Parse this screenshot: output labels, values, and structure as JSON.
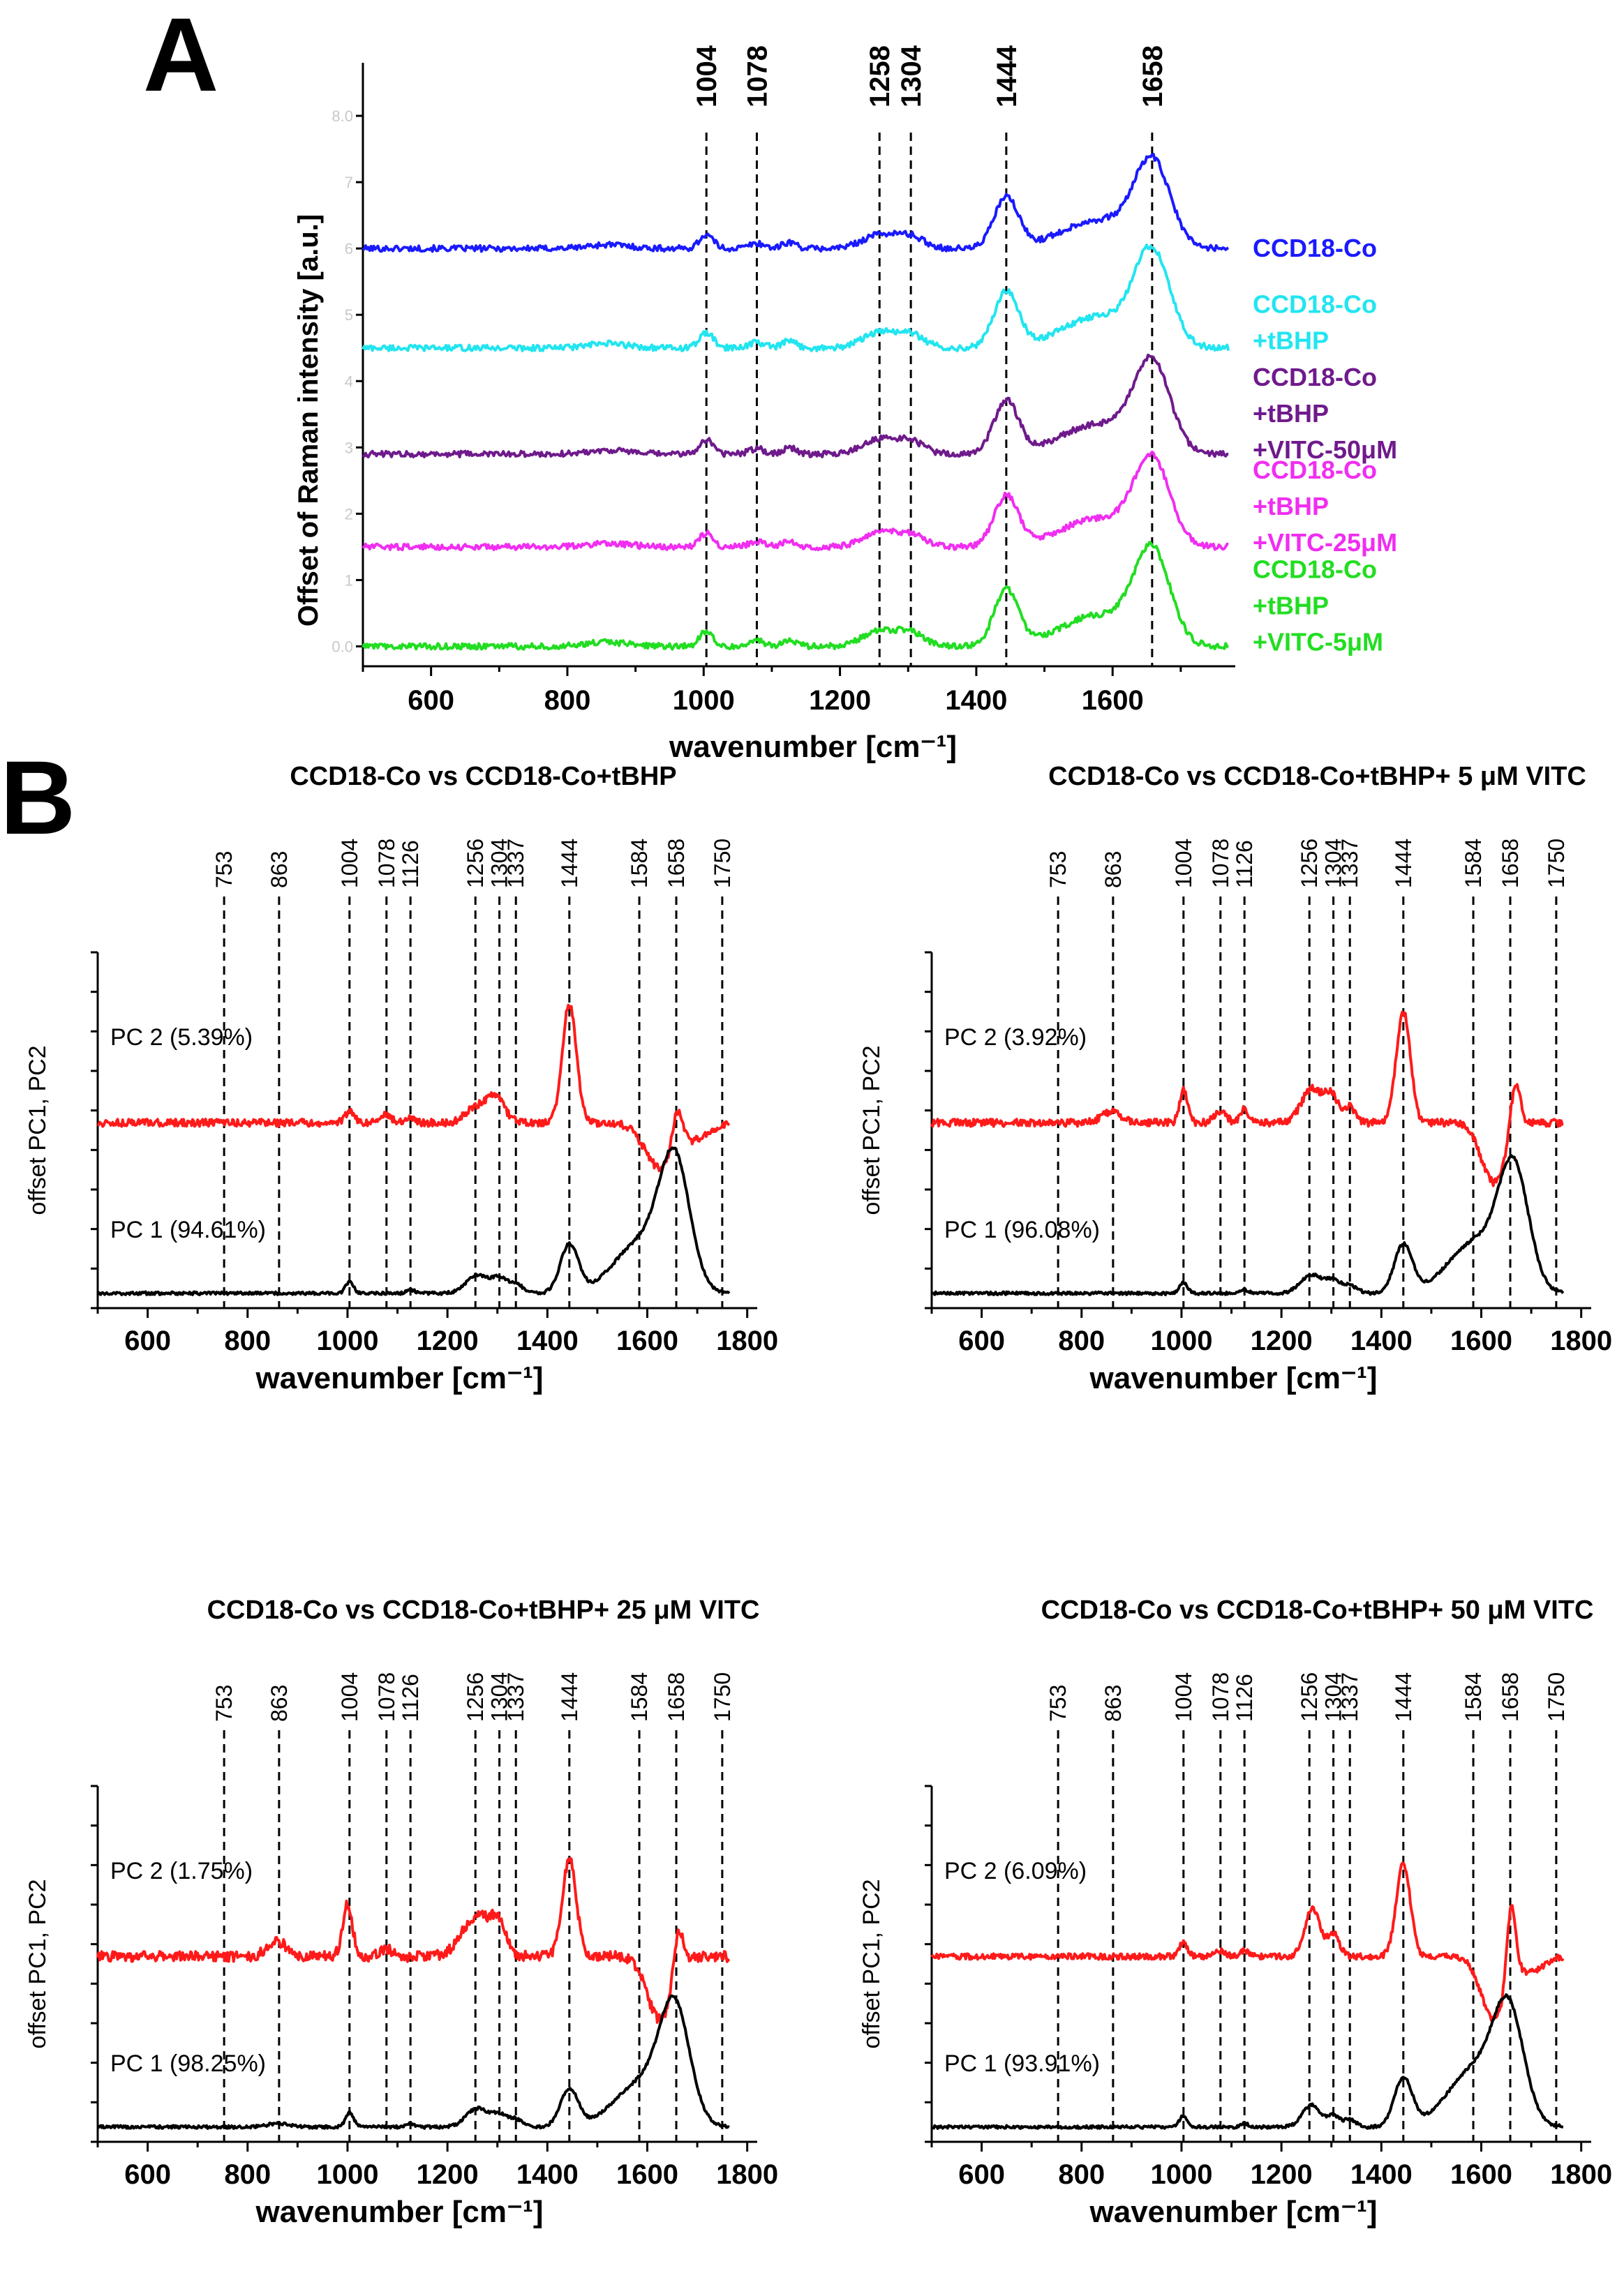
{
  "figure": {
    "panel_a_letter": "A",
    "panel_b_letter": "B"
  },
  "colors": {
    "blue": "#1a1aff",
    "cyan": "#22e5f0",
    "purple": "#6f1a8c",
    "magenta": "#f02ef0",
    "green": "#22dd22",
    "red": "#ff1a1a",
    "black": "#000000"
  },
  "chart_data": [
    {
      "id": "panel-a",
      "type": "line",
      "title": "",
      "xlabel": "wavenumber [cm⁻¹]",
      "ylabel": "Offset of Raman intensity [a.u.]",
      "xlim": [
        500,
        1780
      ],
      "ylim": [
        -0.3,
        8.8
      ],
      "xticks": [
        600,
        800,
        1000,
        1200,
        1400,
        1600
      ],
      "yticks_ghost": [
        "0.0",
        "1",
        "2",
        "3",
        "4",
        "5",
        "6",
        "7",
        "8.0"
      ],
      "peak_lines": [
        1004,
        1078,
        1258,
        1304,
        1444,
        1658
      ],
      "peaks": [
        {
          "pos": 860,
          "w": 30,
          "a": 0.06
        },
        {
          "pos": 1004,
          "w": 10,
          "a": 0.22
        },
        {
          "pos": 1078,
          "w": 12,
          "a": 0.08
        },
        {
          "pos": 1126,
          "w": 10,
          "a": 0.1
        },
        {
          "pos": 1258,
          "w": 25,
          "a": 0.22
        },
        {
          "pos": 1304,
          "w": 20,
          "a": 0.18
        },
        {
          "pos": 1444,
          "w": 18,
          "a": 0.8
        },
        {
          "pos": 1580,
          "w": 55,
          "a": 0.45
        },
        {
          "pos": 1658,
          "w": 26,
          "a": 1.3
        }
      ],
      "series": [
        {
          "name": "CCD18-Co",
          "color": "#1a1aff",
          "offset": 6.0,
          "scale": 0.95,
          "legend": [
            "CCD18-Co"
          ]
        },
        {
          "name": "CCD18-Co +tBHP",
          "color": "#22e5f0",
          "offset": 4.5,
          "scale": 1.05,
          "legend": [
            "CCD18-Co",
            "+tBHP"
          ]
        },
        {
          "name": "CCD18-Co +tBHP +VITC-50μM",
          "color": "#6f1a8c",
          "offset": 2.9,
          "scale": 1.0,
          "legend": [
            "CCD18-Co",
            "+tBHP",
            "+VITC-50μM"
          ]
        },
        {
          "name": "CCD18-Co +tBHP +VITC-25μM",
          "color": "#f02ef0",
          "offset": 1.5,
          "scale": 0.95,
          "legend": [
            "CCD18-Co",
            "+tBHP",
            "+VITC-25μM"
          ]
        },
        {
          "name": "CCD18-Co +tBHP +VITC-5μM",
          "color": "#22dd22",
          "offset": 0.0,
          "scale": 1.05,
          "legend": [
            "CCD18-Co",
            "+tBHP",
            "+VITC-5μM"
          ]
        }
      ]
    },
    {
      "id": "panel-b1",
      "type": "line",
      "title": "CCD18-Co vs CCD18-Co+tBHP",
      "xlabel": "wavenumber [cm⁻¹]",
      "ylabel": "offset PC1, PC2",
      "xlim": [
        500,
        1820
      ],
      "ylim": [
        -0.2,
        4.6
      ],
      "xticks": [
        600,
        800,
        1000,
        1200,
        1400,
        1600,
        1800
      ],
      "peak_lines": [
        753,
        863,
        1004,
        1078,
        1126,
        1256,
        1304,
        1337,
        1444,
        1584,
        1658,
        1750
      ],
      "series": [
        {
          "name": "PC 2 (5.39%)",
          "color": "#ff1a1a",
          "offset": 2.3,
          "noise": 0.05,
          "peaks": [
            {
              "pos": 1004,
              "w": 9,
              "a": 0.15
            },
            {
              "pos": 1078,
              "w": 10,
              "a": 0.12
            },
            {
              "pos": 1126,
              "w": 8,
              "a": 0.08
            },
            {
              "pos": 1256,
              "w": 20,
              "a": 0.2
            },
            {
              "pos": 1296,
              "w": 18,
              "a": 0.35
            },
            {
              "pos": 1444,
              "w": 14,
              "a": 1.6
            },
            {
              "pos": 1625,
              "w": 30,
              "a": -0.6
            },
            {
              "pos": 1660,
              "w": 10,
              "a": 0.5
            },
            {
              "pos": 1700,
              "w": 25,
              "a": -0.2
            }
          ]
        },
        {
          "name": "PC 1 (94.61%)",
          "color": "#000000",
          "offset": 0.0,
          "noise": 0.02,
          "peaks": [
            {
              "pos": 1004,
              "w": 8,
              "a": 0.15
            },
            {
              "pos": 1126,
              "w": 8,
              "a": 0.05
            },
            {
              "pos": 1260,
              "w": 22,
              "a": 0.25
            },
            {
              "pos": 1304,
              "w": 15,
              "a": 0.18
            },
            {
              "pos": 1337,
              "w": 15,
              "a": 0.12
            },
            {
              "pos": 1444,
              "w": 18,
              "a": 0.65
            },
            {
              "pos": 1590,
              "w": 55,
              "a": 0.7
            },
            {
              "pos": 1655,
              "w": 30,
              "a": 1.6
            }
          ]
        }
      ]
    },
    {
      "id": "panel-b2",
      "type": "line",
      "title": "CCD18-Co vs CCD18-Co+tBHP+ 5 μM VITC",
      "xlabel": "wavenumber [cm⁻¹]",
      "ylabel": "offset PC1, PC2",
      "xlim": [
        500,
        1820
      ],
      "ylim": [
        -0.2,
        4.6
      ],
      "xticks": [
        600,
        800,
        1000,
        1200,
        1400,
        1600,
        1800
      ],
      "peak_lines": [
        753,
        863,
        1004,
        1078,
        1126,
        1256,
        1304,
        1337,
        1444,
        1584,
        1658,
        1750
      ],
      "series": [
        {
          "name": "PC 2 (3.92%)",
          "color": "#ff1a1a",
          "offset": 2.3,
          "noise": 0.05,
          "peaks": [
            {
              "pos": 860,
              "w": 20,
              "a": 0.15
            },
            {
              "pos": 1004,
              "w": 8,
              "a": 0.45
            },
            {
              "pos": 1078,
              "w": 12,
              "a": 0.15
            },
            {
              "pos": 1126,
              "w": 8,
              "a": 0.2
            },
            {
              "pos": 1260,
              "w": 20,
              "a": 0.45
            },
            {
              "pos": 1300,
              "w": 15,
              "a": 0.35
            },
            {
              "pos": 1337,
              "w": 12,
              "a": 0.2
            },
            {
              "pos": 1444,
              "w": 14,
              "a": 1.5
            },
            {
              "pos": 1625,
              "w": 25,
              "a": -0.8
            },
            {
              "pos": 1668,
              "w": 10,
              "a": 0.7
            }
          ]
        },
        {
          "name": "PC 1 (96.08%)",
          "color": "#000000",
          "offset": 0.0,
          "noise": 0.02,
          "peaks": [
            {
              "pos": 1004,
              "w": 8,
              "a": 0.15
            },
            {
              "pos": 1126,
              "w": 8,
              "a": 0.05
            },
            {
              "pos": 1260,
              "w": 22,
              "a": 0.25
            },
            {
              "pos": 1304,
              "w": 15,
              "a": 0.15
            },
            {
              "pos": 1337,
              "w": 15,
              "a": 0.1
            },
            {
              "pos": 1444,
              "w": 18,
              "a": 0.65
            },
            {
              "pos": 1590,
              "w": 55,
              "a": 0.7
            },
            {
              "pos": 1665,
              "w": 30,
              "a": 1.55
            }
          ]
        }
      ]
    },
    {
      "id": "panel-b3",
      "type": "line",
      "title": "CCD18-Co vs CCD18-Co+tBHP+ 25 μM VITC",
      "xlabel": "wavenumber [cm⁻¹]",
      "ylabel": "offset PC1, PC2",
      "xlim": [
        500,
        1820
      ],
      "ylim": [
        -0.2,
        4.6
      ],
      "xticks": [
        600,
        800,
        1000,
        1200,
        1400,
        1600,
        1800
      ],
      "peak_lines": [
        753,
        863,
        1004,
        1078,
        1126,
        1256,
        1304,
        1337,
        1444,
        1584,
        1658,
        1750
      ],
      "series": [
        {
          "name": "PC 2 (1.75%)",
          "color": "#ff1a1a",
          "offset": 2.3,
          "noise": 0.07,
          "peaks": [
            {
              "pos": 860,
              "w": 20,
              "a": 0.2
            },
            {
              "pos": 1000,
              "w": 10,
              "a": 0.7
            },
            {
              "pos": 1078,
              "w": 12,
              "a": 0.1
            },
            {
              "pos": 1260,
              "w": 30,
              "a": 0.55
            },
            {
              "pos": 1304,
              "w": 15,
              "a": 0.35
            },
            {
              "pos": 1444,
              "w": 14,
              "a": 1.3
            },
            {
              "pos": 1625,
              "w": 25,
              "a": -0.85
            },
            {
              "pos": 1662,
              "w": 10,
              "a": 0.6
            }
          ]
        },
        {
          "name": "PC 1 (98.25%)",
          "color": "#000000",
          "offset": 0.0,
          "noise": 0.02,
          "peaks": [
            {
              "pos": 860,
              "w": 20,
              "a": 0.05
            },
            {
              "pos": 1004,
              "w": 8,
              "a": 0.2
            },
            {
              "pos": 1126,
              "w": 8,
              "a": 0.05
            },
            {
              "pos": 1260,
              "w": 22,
              "a": 0.25
            },
            {
              "pos": 1304,
              "w": 15,
              "a": 0.15
            },
            {
              "pos": 1337,
              "w": 15,
              "a": 0.1
            },
            {
              "pos": 1444,
              "w": 18,
              "a": 0.5
            },
            {
              "pos": 1590,
              "w": 55,
              "a": 0.6
            },
            {
              "pos": 1655,
              "w": 30,
              "a": 1.45
            }
          ]
        }
      ]
    },
    {
      "id": "panel-b4",
      "type": "line",
      "title": "CCD18-Co vs CCD18-Co+tBHP+ 50 μM VITC",
      "xlabel": "wavenumber [cm⁻¹]",
      "ylabel": "offset PC1, PC2",
      "xlim": [
        500,
        1820
      ],
      "ylim": [
        -0.2,
        4.6
      ],
      "xticks": [
        600,
        800,
        1000,
        1200,
        1400,
        1600,
        1800
      ],
      "peak_lines": [
        753,
        863,
        1004,
        1078,
        1126,
        1256,
        1304,
        1337,
        1444,
        1584,
        1658,
        1750
      ],
      "series": [
        {
          "name": "PC 2 (6.09%)",
          "color": "#ff1a1a",
          "offset": 2.3,
          "noise": 0.04,
          "peaks": [
            {
              "pos": 1004,
              "w": 8,
              "a": 0.2
            },
            {
              "pos": 1078,
              "w": 10,
              "a": 0.08
            },
            {
              "pos": 1126,
              "w": 8,
              "a": 0.08
            },
            {
              "pos": 1262,
              "w": 15,
              "a": 0.65
            },
            {
              "pos": 1304,
              "w": 12,
              "a": 0.3
            },
            {
              "pos": 1444,
              "w": 14,
              "a": 1.25
            },
            {
              "pos": 1625,
              "w": 25,
              "a": -0.85
            },
            {
              "pos": 1660,
              "w": 9,
              "a": 1.05
            },
            {
              "pos": 1700,
              "w": 25,
              "a": -0.2
            }
          ]
        },
        {
          "name": "PC 1 (93.91%)",
          "color": "#000000",
          "offset": 0.0,
          "noise": 0.02,
          "peaks": [
            {
              "pos": 1004,
              "w": 8,
              "a": 0.15
            },
            {
              "pos": 1126,
              "w": 8,
              "a": 0.05
            },
            {
              "pos": 1260,
              "w": 18,
              "a": 0.3
            },
            {
              "pos": 1304,
              "w": 12,
              "a": 0.15
            },
            {
              "pos": 1337,
              "w": 12,
              "a": 0.1
            },
            {
              "pos": 1444,
              "w": 18,
              "a": 0.65
            },
            {
              "pos": 1590,
              "w": 55,
              "a": 0.8
            },
            {
              "pos": 1655,
              "w": 30,
              "a": 1.35
            }
          ]
        }
      ]
    }
  ]
}
